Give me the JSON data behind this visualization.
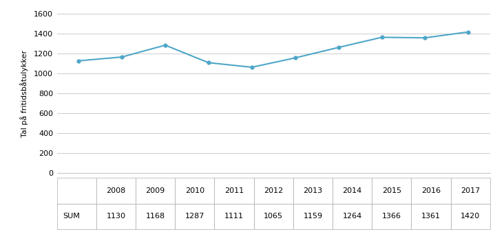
{
  "years": [
    2008,
    2009,
    2010,
    2011,
    2012,
    2013,
    2014,
    2015,
    2016,
    2017
  ],
  "values": [
    1130,
    1168,
    1287,
    1111,
    1065,
    1159,
    1264,
    1366,
    1361,
    1420
  ],
  "line_color": "#4da6c8",
  "ylabel": "Tal på fritidsbåtulykker",
  "ylim": [
    0,
    1600
  ],
  "yticks": [
    0,
    200,
    400,
    600,
    800,
    1000,
    1200,
    1400,
    1600
  ],
  "background_color": "#ffffff",
  "grid_color": "#cccccc",
  "border_color": "#aaaaaa",
  "table_row_label": "SUM",
  "table_header_row": [
    "2008",
    "2009",
    "2010",
    "2011",
    "2012",
    "2013",
    "2014",
    "2015",
    "2016",
    "2017"
  ],
  "table_values_row": [
    "1130",
    "1168",
    "1287",
    "1111",
    "1065",
    "1159",
    "1264",
    "1366",
    "1361",
    "1420"
  ],
  "line_width": 1.5,
  "marker_size": 3.5,
  "font_size": 8,
  "ylabel_fontsize": 8
}
